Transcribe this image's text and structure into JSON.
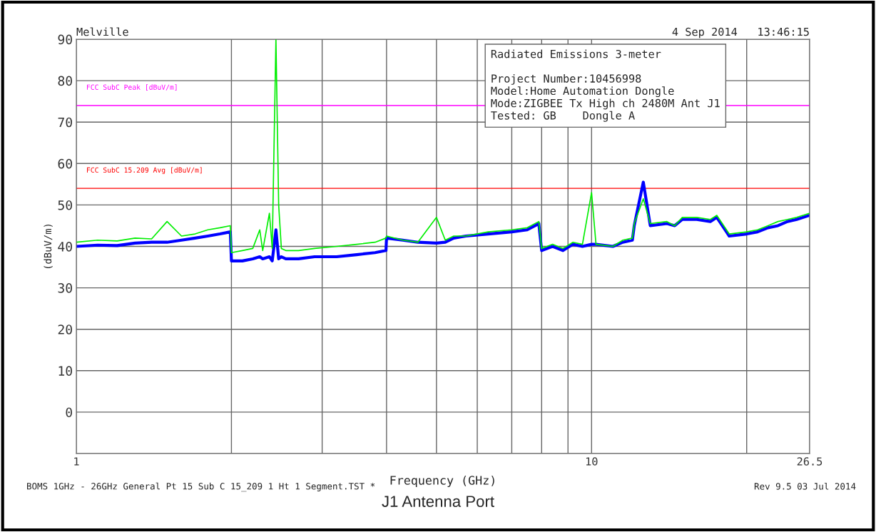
{
  "chart_data": {
    "type": "line",
    "title": "J1 Antenna Port",
    "xlabel": "Frequency (GHz)",
    "ylabel": "(dBuV/m)",
    "log": "x",
    "xlim": [
      1,
      26.5
    ],
    "ylim": [
      -10,
      90
    ],
    "xticks": [
      1,
      {
        "value": 2,
        "label": null
      },
      {
        "value": 3,
        "label": null
      },
      {
        "value": 4,
        "label": null
      },
      {
        "value": 5,
        "label": null
      },
      {
        "value": 6,
        "label": null
      },
      {
        "value": 7,
        "label": null
      },
      {
        "value": 8,
        "label": null
      },
      {
        "value": 9,
        "label": null
      },
      10,
      {
        "value": 20,
        "label": null
      },
      26.5
    ],
    "yticks": [
      {
        "value": -10,
        "label": null
      },
      0,
      10,
      20,
      30,
      40,
      50,
      60,
      70,
      80,
      90
    ],
    "grid": true,
    "legend": false,
    "ref_lines": [
      {
        "axis": "y",
        "value": 74,
        "label": "FCC SubC Peak [dBuV/m]",
        "color": "#ff00ff"
      },
      {
        "axis": "y",
        "value": 54,
        "label": "FCC SubC 15.209 Avg [dBuV/m]",
        "color": "#ff0000"
      }
    ],
    "annotations": [
      "Melville",
      "4 Sep 2014   13:46:15",
      "Radiated Emissions 3-meter\n\nProject Number:10456998\nModel:Home Automation Dongle\nMode:ZIGBEE Tx High ch 2480M Ant J1\nTested: GB    Dongle A",
      "BOMS 1GHz - 26GHz General Pt 15 Sub C 15_209 1 Ht 1 Segment.TST *",
      "Rev 9.5 03 Jul 2014"
    ],
    "series": [
      {
        "color": "#0000ff",
        "x": [
          1.0,
          1.1,
          1.2,
          1.3,
          1.4,
          1.5,
          1.6,
          1.7,
          1.8,
          1.9,
          1.99,
          2.0,
          2.1,
          2.2,
          2.27,
          2.3,
          2.37,
          2.4,
          2.44,
          2.47,
          2.5,
          2.55,
          2.7,
          2.9,
          3.2,
          3.5,
          3.8,
          3.99,
          4.0,
          4.3,
          4.6,
          5.0,
          5.2,
          5.4,
          5.7,
          6.3,
          7.0,
          7.5,
          7.9,
          8.0,
          8.4,
          8.8,
          9.2,
          9.6,
          10.0,
          10.2,
          11.0,
          11.5,
          12.0,
          12.1,
          12.6,
          13.0,
          14.0,
          14.5,
          15.0,
          16.0,
          17.0,
          17.5,
          18.5,
          20.0,
          21.0,
          22.0,
          23.0,
          24.0,
          25.0,
          26.5
        ],
        "values": [
          40,
          40.3,
          40.2,
          40.8,
          41,
          41,
          41.5,
          42,
          42.5,
          43,
          43.5,
          36.5,
          36.5,
          37,
          37.5,
          37,
          37.5,
          36.5,
          44,
          37,
          37.5,
          37,
          37,
          37.5,
          37.5,
          38,
          38.5,
          39,
          42,
          41.5,
          41,
          40.8,
          41,
          42,
          42.5,
          43,
          43.5,
          44,
          45.5,
          39,
          40,
          39,
          40.5,
          40,
          40.5,
          40.5,
          40,
          41,
          41.5,
          45,
          55.5,
          45,
          45.5,
          45,
          46.5,
          46.5,
          46,
          47,
          42.5,
          43,
          43.5,
          44.5,
          45,
          46,
          46.5,
          47.5
        ]
      },
      {
        "color": "#00ee00",
        "x": [
          1.0,
          1.1,
          1.2,
          1.3,
          1.4,
          1.5,
          1.6,
          1.7,
          1.8,
          1.9,
          1.99,
          2.0,
          2.1,
          2.2,
          2.27,
          2.3,
          2.37,
          2.4,
          2.44,
          2.47,
          2.5,
          2.55,
          2.7,
          2.9,
          3.2,
          3.5,
          3.8,
          3.99,
          4.0,
          4.3,
          4.6,
          5.0,
          5.2,
          5.4,
          5.7,
          6.3,
          7.0,
          7.5,
          7.9,
          8.0,
          8.4,
          8.8,
          9.2,
          9.6,
          10.0,
          10.2,
          11.0,
          11.5,
          12.0,
          12.1,
          12.6,
          13.0,
          14.0,
          14.5,
          15.0,
          16.0,
          17.0,
          17.5,
          18.5,
          20.0,
          21.0,
          22.0,
          23.0,
          24.0,
          25.0,
          26.5
        ],
        "values": [
          41,
          41.5,
          41.3,
          42,
          41.8,
          46,
          42.5,
          43,
          44,
          44.5,
          45,
          38.5,
          39,
          39.5,
          44,
          39,
          48,
          39.5,
          90,
          50,
          39.5,
          39,
          39,
          39.5,
          40,
          40.5,
          41,
          42,
          42.5,
          41.5,
          41,
          47,
          41.5,
          42.5,
          42.5,
          43.5,
          44,
          44.5,
          46,
          39.5,
          40.5,
          39.5,
          41,
          40.5,
          53,
          40.5,
          40,
          41.5,
          42,
          45.5,
          51.5,
          45.5,
          46,
          45,
          47,
          47,
          46.5,
          47.5,
          43,
          43.5,
          44,
          45,
          46,
          46.5,
          47,
          48
        ]
      }
    ]
  }
}
